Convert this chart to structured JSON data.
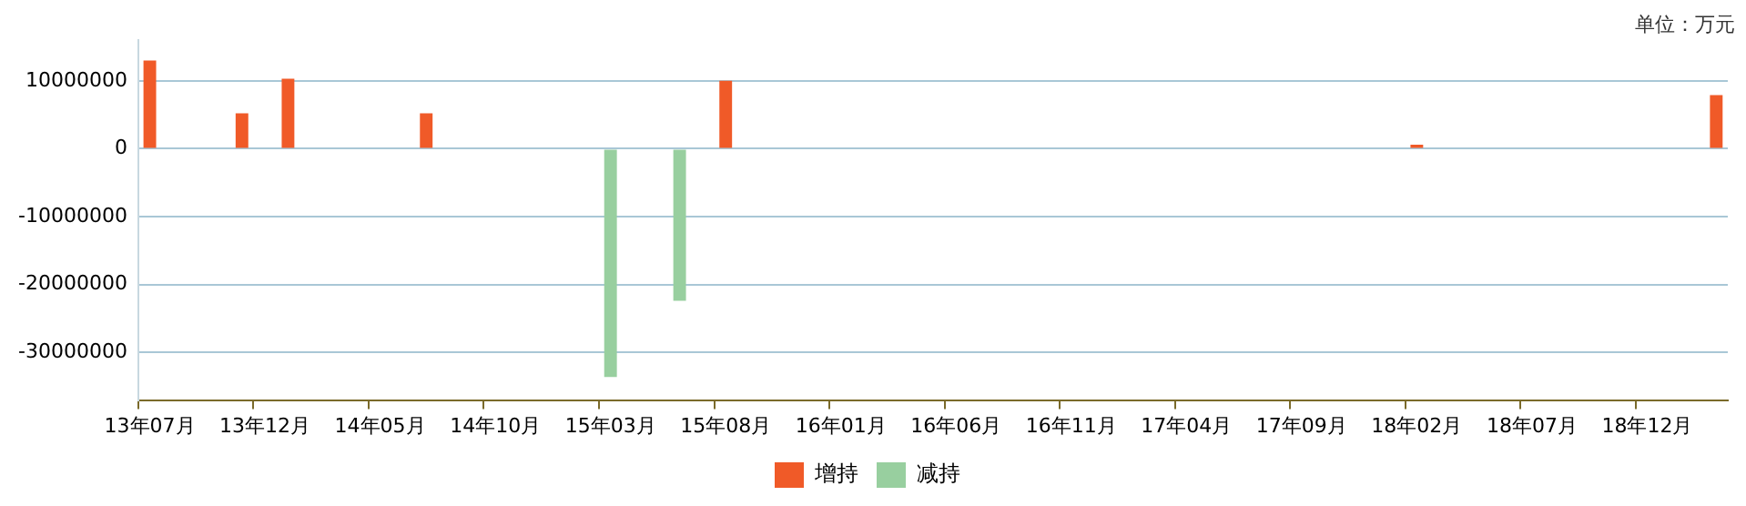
{
  "chart_data": {
    "type": "bar",
    "stacked": true,
    "annotations": [
      "单位：万元"
    ],
    "categories": [
      "13年07月",
      null,
      null,
      null,
      null,
      "13年12月",
      null,
      null,
      null,
      null,
      "14年05月",
      null,
      null,
      null,
      null,
      "14年10月",
      null,
      null,
      null,
      null,
      "15年03月",
      null,
      null,
      null,
      null,
      "15年08月",
      null,
      null,
      null,
      null,
      "16年01月",
      null,
      null,
      null,
      null,
      "16年06月",
      null,
      null,
      null,
      null,
      "16年11月",
      null,
      null,
      null,
      null,
      "17年04月",
      null,
      null,
      null,
      null,
      "17年09月",
      null,
      null,
      null,
      null,
      "18年02月",
      null,
      null,
      null,
      null,
      "18年07月",
      null,
      null,
      null,
      null,
      "18年12月",
      null,
      null,
      null
    ],
    "series": [
      {
        "name": "增持",
        "color": "#f05a28",
        "values": [
          13000000,
          null,
          null,
          null,
          5200000,
          null,
          10300000,
          null,
          null,
          null,
          null,
          null,
          5200000,
          null,
          null,
          null,
          null,
          null,
          null,
          null,
          null,
          null,
          null,
          null,
          null,
          10000000,
          null,
          null,
          null,
          null,
          null,
          null,
          null,
          null,
          null,
          null,
          null,
          null,
          null,
          null,
          null,
          null,
          null,
          null,
          null,
          null,
          null,
          null,
          null,
          null,
          null,
          null,
          null,
          null,
          null,
          600000,
          null,
          null,
          null,
          null,
          null,
          null,
          null,
          null,
          null,
          null,
          null,
          null,
          7900000
        ]
      },
      {
        "name": "减持",
        "color": "#98cf9f",
        "values": [
          null,
          null,
          null,
          null,
          null,
          null,
          null,
          null,
          null,
          null,
          null,
          null,
          null,
          null,
          null,
          null,
          null,
          null,
          null,
          null,
          -33600000,
          null,
          null,
          -22400000,
          null,
          null,
          null,
          null,
          null,
          null,
          null,
          null,
          null,
          null,
          null,
          null,
          null,
          null,
          null,
          null,
          null,
          null,
          null,
          null,
          null,
          null,
          null,
          null,
          null,
          null,
          null,
          null,
          null,
          null,
          null,
          null,
          null,
          null,
          null,
          null,
          null,
          null,
          null,
          null,
          null,
          null,
          null,
          null,
          null
        ]
      }
    ],
    "ylim": [
      -37000000,
      16000000
    ],
    "yticks": [
      -30000000,
      -20000000,
      -10000000,
      0,
      10000000
    ],
    "grid": "y",
    "legend": "bottom"
  }
}
